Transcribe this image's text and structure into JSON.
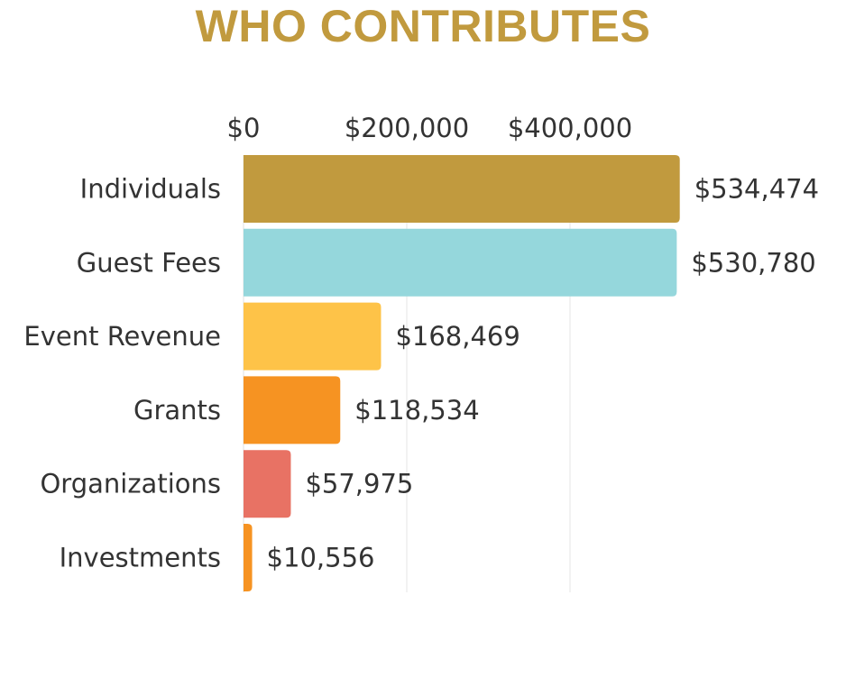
{
  "chart_data": {
    "type": "bar",
    "orientation": "horizontal",
    "title": "WHO CONTRIBUTES",
    "categories": [
      "Individuals",
      "Guest Fees",
      "Event Revenue",
      "Grants",
      "Organizations",
      "Investments"
    ],
    "values": [
      534474,
      530780,
      168469,
      118534,
      57975,
      10556
    ],
    "value_labels": [
      "$534,474",
      "$530,780",
      "$168,469",
      "$118,534",
      "$57,975",
      "$10,556"
    ],
    "colors": [
      "#c19a3e",
      "#95d7dc",
      "#fec348",
      "#f69322",
      "#e87264",
      "#f69322"
    ],
    "x_ticks": [
      0,
      200000,
      400000
    ],
    "x_tick_labels": [
      "$0",
      "$200,000",
      "$400,000"
    ],
    "xlim": [
      0,
      600000
    ],
    "axis_position": "top",
    "grid": true
  }
}
